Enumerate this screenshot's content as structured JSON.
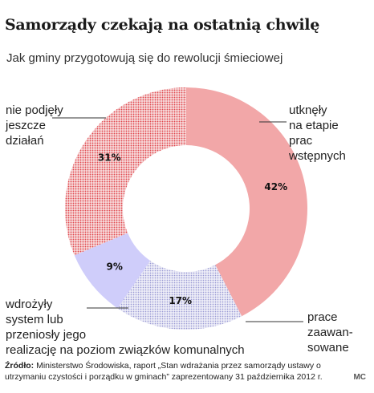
{
  "title": "Samorządy czekają na ostatnią chwilę",
  "subtitle": "Jak gminy przygotowują się do rewolucji śmieciowej",
  "source": {
    "label": "Źródło:",
    "text": "Ministerstwo Środowiska, raport „Stan wdrażania przez samorządy ustawy o utrzymaniu czystości i porządku w gminach” zaprezentowany 31 października 2012 r."
  },
  "credit": "MC",
  "colors": {
    "pink": "#f2a7a8",
    "red_dots": "#e0484e",
    "blue_dots": "#9a9ad4",
    "lavender": "#cfcdfa",
    "leader": "#333333"
  },
  "chart_data": {
    "type": "donut",
    "series": [
      {
        "label_lines": [
          "utknęły",
          "na etapie",
          "prac",
          "wstępnych"
        ],
        "value": 42,
        "value_label": "42%",
        "fill": "pink"
      },
      {
        "label_lines": [
          "prace",
          "zaawan-",
          "sowane"
        ],
        "value": 17,
        "value_label": "17%",
        "fill": "blue-dots"
      },
      {
        "label_lines": [
          "wdrożyły",
          "system lub",
          "przeniosły jego",
          "realizację na poziom związków komunalnych"
        ],
        "value": 9,
        "value_label": "9%",
        "fill": "lavender"
      },
      {
        "label_lines": [
          "nie podjęły",
          "jeszcze",
          "działań"
        ],
        "value": 31,
        "value_label": "31%",
        "fill": "red-dots"
      }
    ]
  }
}
